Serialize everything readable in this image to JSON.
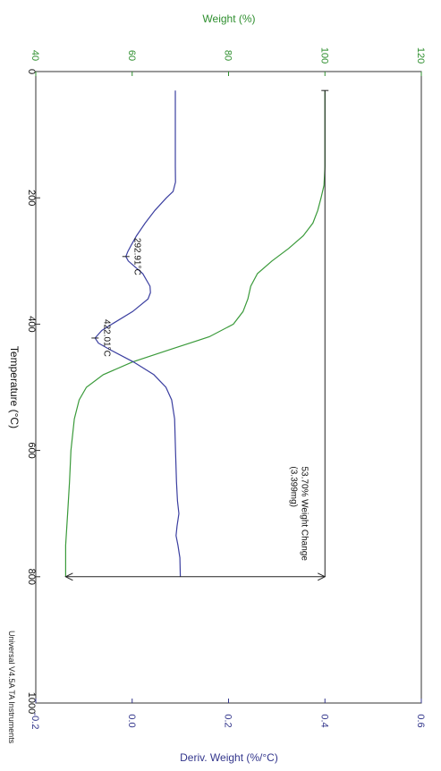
{
  "chart_data": {
    "type": "line",
    "orientation": "rotated 90° clockwise (temperature runs downward)",
    "title": "",
    "xlabel": "Temperature (°C)",
    "xlim": [
      0,
      1000
    ],
    "x_ticks": [
      "0",
      "200",
      "400",
      "600",
      "800",
      "1000"
    ],
    "y_left_label": "Weight (%)",
    "y_left_lim": [
      40,
      120
    ],
    "y_left_ticks": [
      "40",
      "60",
      "80",
      "100",
      "120"
    ],
    "y_right_label": "Deriv. Weight (%/°C)",
    "y_right_lim": [
      -0.2,
      0.6
    ],
    "y_right_ticks": [
      "-0.2",
      "0.0",
      "0.2",
      "0.4",
      "0.6"
    ],
    "grid": false,
    "legend": "none",
    "series": [
      {
        "axis": "weight",
        "color": "#3a9a3a",
        "points": [
          [
            30,
            100
          ],
          [
            100,
            100
          ],
          [
            150,
            100
          ],
          [
            180,
            99.8
          ],
          [
            200,
            99.2
          ],
          [
            220,
            98.5
          ],
          [
            240,
            97.5
          ],
          [
            260,
            95.5
          ],
          [
            280,
            92.5
          ],
          [
            300,
            89
          ],
          [
            320,
            86
          ],
          [
            340,
            84.6
          ],
          [
            360,
            84
          ],
          [
            380,
            83
          ],
          [
            400,
            81
          ],
          [
            420,
            76
          ],
          [
            440,
            68
          ],
          [
            460,
            60
          ],
          [
            480,
            54
          ],
          [
            500,
            50.5
          ],
          [
            520,
            49
          ],
          [
            550,
            48
          ],
          [
            600,
            47.3
          ],
          [
            650,
            47
          ],
          [
            700,
            46.6
          ],
          [
            750,
            46.2
          ],
          [
            800,
            46.2
          ]
        ]
      },
      {
        "axis": "deriv",
        "color": "#3b3fa0",
        "points": [
          [
            30,
            0.0895
          ],
          [
            100,
            0.0895
          ],
          [
            150,
            0.0895
          ],
          [
            175,
            0.09
          ],
          [
            190,
            0.085
          ],
          [
            200,
            0.071
          ],
          [
            220,
            0.047
          ],
          [
            240,
            0.027
          ],
          [
            260,
            0.009
          ],
          [
            275,
            -0.002
          ],
          [
            285,
            -0.009
          ],
          [
            292.91,
            -0.013
          ],
          [
            300,
            -0.008
          ],
          [
            320,
            0.022
          ],
          [
            340,
            0.037
          ],
          [
            350,
            0.038
          ],
          [
            360,
            0.033
          ],
          [
            380,
            0.001
          ],
          [
            400,
            -0.042
          ],
          [
            410,
            -0.063
          ],
          [
            422.01,
            -0.077
          ],
          [
            430,
            -0.07
          ],
          [
            440,
            -0.047
          ],
          [
            460,
            0.003
          ],
          [
            480,
            0.045
          ],
          [
            500,
            0.07
          ],
          [
            520,
            0.082
          ],
          [
            550,
            0.088
          ],
          [
            600,
            0.09
          ],
          [
            650,
            0.092
          ],
          [
            680,
            0.094
          ],
          [
            700,
            0.097
          ],
          [
            720,
            0.093
          ],
          [
            735,
            0.091
          ],
          [
            750,
            0.095
          ],
          [
            770,
            0.099
          ],
          [
            800,
            0.1
          ]
        ]
      }
    ],
    "annotations": [
      {
        "text": "292.91°C",
        "x": 292.91,
        "y_deriv": -0.013
      },
      {
        "text": "422.01°C",
        "x": 422.01,
        "y_deriv": -0.077
      },
      {
        "text": "53.70% Weight Change",
        "text2": "(3.399mg)",
        "x_from": 30,
        "x_to": 800,
        "weight_from": 100,
        "weight_to": 46.2
      }
    ],
    "footer": "Universal V4.5A TA Instruments"
  }
}
